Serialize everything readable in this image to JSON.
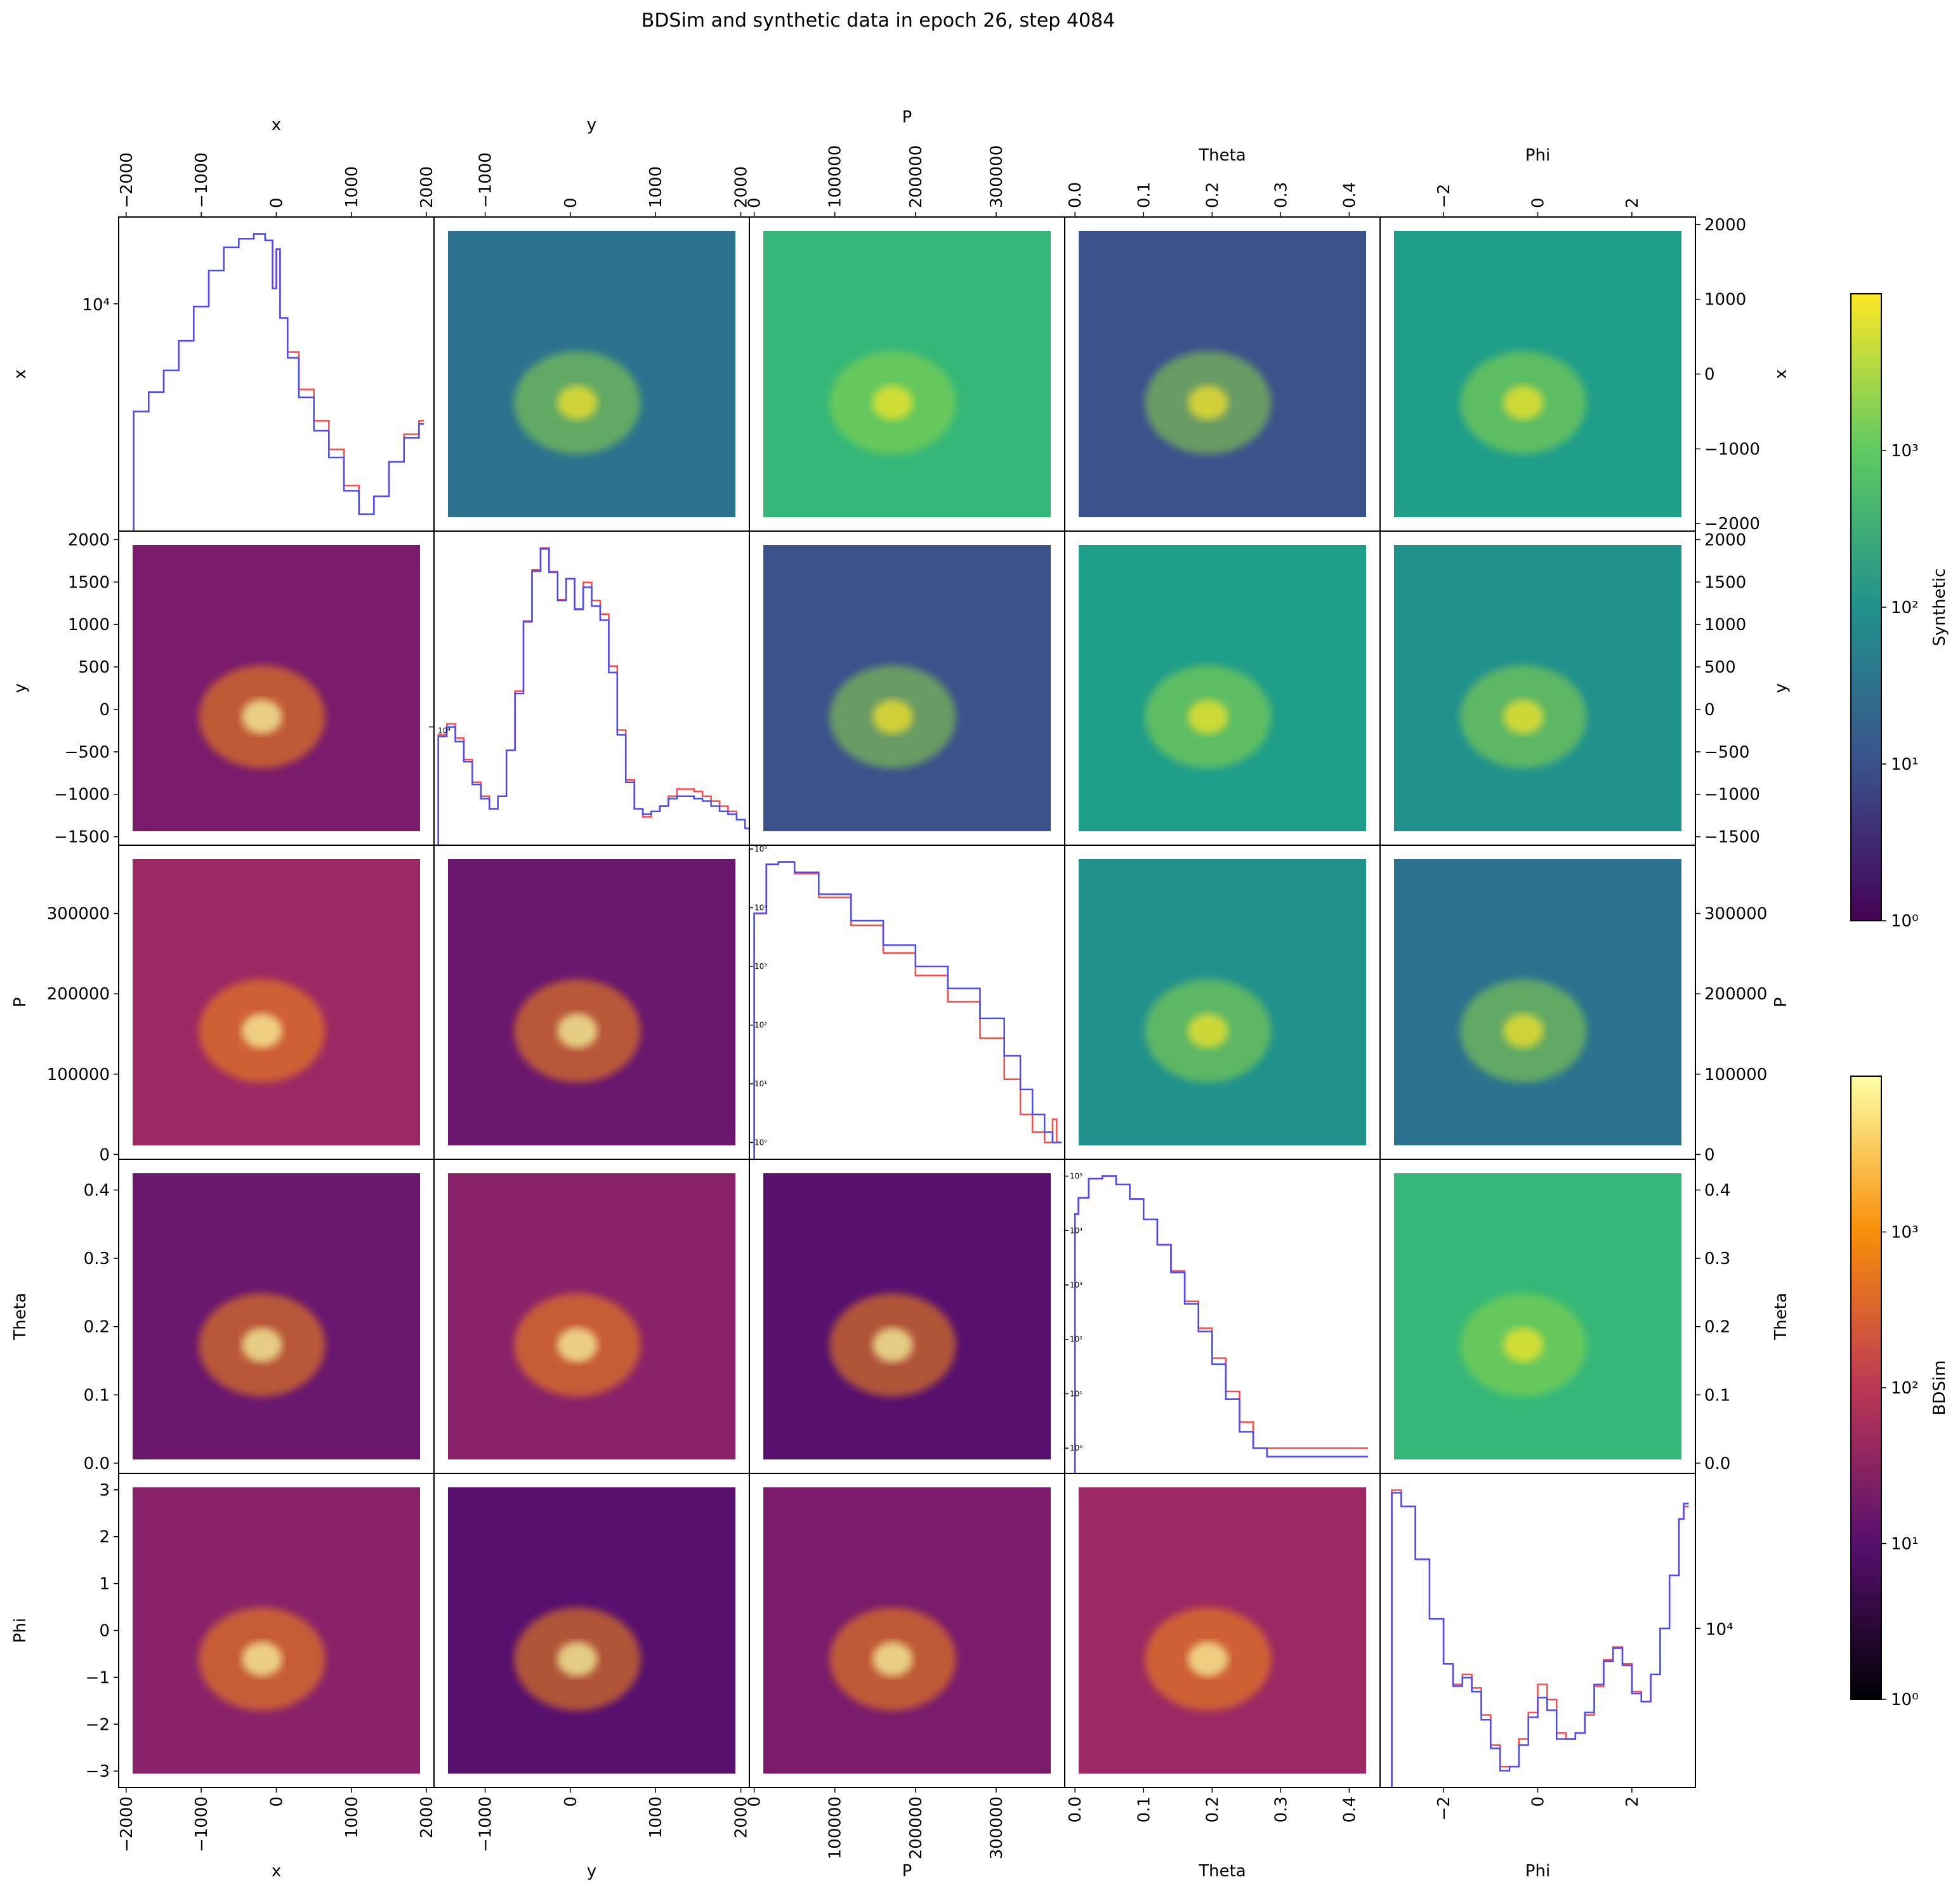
{
  "title": "BDSim and synthetic data in epoch 26, step 4084",
  "chart_data": {
    "type": "pairplot",
    "variables": [
      "x",
      "y",
      "P",
      "Theta",
      "Phi"
    ],
    "axis_labels": {
      "x_labels": [
        "x",
        "y",
        "P",
        "Theta",
        "Phi"
      ],
      "y_labels": [
        "x",
        "y",
        "P",
        "Theta",
        "Phi"
      ]
    },
    "ranges": {
      "x": [
        -2100,
        2100
      ],
      "y": [
        -1600,
        2100
      ],
      "P": [
        -6000,
        385000
      ],
      "Theta": [
        -0.015,
        0.445
      ],
      "Phi": [
        -3.35,
        3.35
      ]
    },
    "ticks": {
      "x": {
        "values": [
          -2000,
          -1000,
          0,
          1000,
          2000
        ],
        "labels": [
          "−2000",
          "−1000",
          "0",
          "1000",
          "2000"
        ]
      },
      "y_top": {
        "values": [
          -1000,
          0,
          1000,
          2000
        ],
        "labels": [
          "−1000",
          "0",
          "1000",
          "2000"
        ]
      },
      "y_side": {
        "values": [
          -1500,
          -1000,
          -500,
          0,
          500,
          1000,
          1500,
          2000
        ],
        "labels": [
          "−1500",
          "−1000",
          "−500",
          "0",
          "500",
          "1000",
          "1500",
          "2000"
        ]
      },
      "P": {
        "values": [
          0,
          100000,
          200000,
          300000
        ],
        "labels": [
          "0",
          "100000",
          "200000",
          "300000"
        ]
      },
      "P_side": {
        "values": [
          0,
          100000,
          200000,
          300000
        ],
        "labels": [
          "0",
          "100000",
          "200000",
          "300000"
        ]
      },
      "Theta": {
        "values": [
          0.0,
          0.1,
          0.2,
          0.3,
          0.4
        ],
        "labels": [
          "0.0",
          "0.1",
          "0.2",
          "0.3",
          "0.4"
        ]
      },
      "Phi_top": {
        "values": [
          -2,
          0,
          2
        ],
        "labels": [
          "−2",
          "0",
          "2"
        ]
      },
      "Phi_side": {
        "values": [
          -3,
          -2,
          -1,
          0,
          1,
          2,
          3
        ],
        "labels": [
          "−3",
          "−2",
          "−1",
          "0",
          "1",
          "2",
          "3"
        ]
      }
    },
    "upper_triangle": {
      "type": "heatmap",
      "dataset": "Synthetic",
      "colormap": "viridis",
      "scale": "log"
    },
    "lower_triangle": {
      "type": "heatmap",
      "dataset": "BDSim",
      "colormap": "inferno",
      "scale": "log"
    },
    "diagonal": {
      "type": "line",
      "histtype": "step",
      "colors": {
        "BDSim": "#ff4a4a",
        "Synthetic": "#4a4aff"
      },
      "panels": [
        {
          "variable": "x",
          "yscale": "log",
          "tick_label": "10⁴",
          "x": [
            -1900,
            -1700,
            -1500,
            -1300,
            -1100,
            -900,
            -700,
            -500,
            -300,
            -150,
            -50,
            0,
            50,
            150,
            300,
            500,
            700,
            900,
            1100,
            1300,
            1500,
            1700,
            1900
          ],
          "BDSim": [
            4500,
            5200,
            6100,
            7600,
            9800,
            12800,
            15200,
            16200,
            16800,
            16000,
            11200,
            15000,
            9000,
            7000,
            5300,
            4200,
            3400,
            2600,
            2100,
            2400,
            3100,
            3800,
            4200
          ],
          "Synthetic": [
            4500,
            5200,
            6100,
            7600,
            9800,
            12800,
            15200,
            16200,
            16800,
            16000,
            11200,
            15000,
            9000,
            6700,
            5000,
            3900,
            3200,
            2500,
            2100,
            2400,
            3100,
            3700,
            4100
          ]
        },
        {
          "variable": "y",
          "yscale": "log",
          "tick_label": "10⁴",
          "x": [
            -1550,
            -1450,
            -1350,
            -1250,
            -1150,
            -1050,
            -950,
            -850,
            -750,
            -650,
            -550,
            -450,
            -350,
            -250,
            -150,
            -50,
            50,
            150,
            250,
            350,
            450,
            550,
            650,
            750,
            850,
            950,
            1050,
            1150,
            1250,
            1350,
            1450,
            1550,
            1650,
            1750,
            1850,
            1950,
            2050
          ],
          "BDSim": [
            9500,
            10200,
            9300,
            8100,
            7000,
            6400,
            5900,
            6400,
            8600,
            12600,
            19800,
            27500,
            31700,
            27200,
            22700,
            26000,
            21300,
            25400,
            22600,
            20700,
            14800,
            9800,
            7100,
            5900,
            5600,
            5800,
            6000,
            6400,
            6700,
            6700,
            6600,
            6400,
            6200,
            6000,
            5800,
            5500,
            5200
          ],
          "Synthetic": [
            9400,
            10000,
            9100,
            8000,
            6900,
            6300,
            5900,
            6400,
            8600,
            12400,
            19700,
            27300,
            31500,
            27100,
            22600,
            26000,
            21400,
            24600,
            21800,
            19900,
            14200,
            9500,
            7000,
            5900,
            5700,
            5800,
            6000,
            6300,
            6400,
            6400,
            6300,
            6200,
            6000,
            5800,
            5700,
            5500,
            5200
          ]
        },
        {
          "variable": "P",
          "yscale": "log",
          "tick_labels": [
            "10⁰",
            "10¹",
            "10²",
            "10³",
            "10⁴",
            "10⁵"
          ],
          "x": [
            0,
            15000,
            30000,
            50000,
            80000,
            120000,
            160000,
            200000,
            240000,
            280000,
            310000,
            330000,
            345000,
            360000,
            370000,
            375000
          ],
          "BDSim": [
            8000,
            55000,
            60000,
            38000,
            15000,
            5000,
            1700,
            700,
            250,
            60,
            12,
            3,
            1.5,
            1,
            2.5,
            1
          ],
          "Synthetic": [
            8000,
            55000,
            60000,
            40000,
            17000,
            6000,
            2300,
            1000,
            420,
            130,
            30,
            8,
            3,
            1.5,
            1,
            1
          ]
        },
        {
          "variable": "Theta",
          "yscale": "log",
          "tick_labels": [
            "10⁰",
            "10¹",
            "10²",
            "10³",
            "10⁴",
            "10⁵"
          ],
          "x": [
            0.0,
            0.005,
            0.02,
            0.04,
            0.06,
            0.08,
            0.1,
            0.12,
            0.14,
            0.16,
            0.18,
            0.2,
            0.22,
            0.24,
            0.26,
            0.28,
            0.42
          ],
          "BDSim": [
            20000,
            40000,
            90000,
            100000,
            70000,
            38000,
            16000,
            5500,
            1800,
            500,
            160,
            45,
            11,
            3,
            1,
            1,
            1
          ],
          "Synthetic": [
            20000,
            40000,
            90000,
            100000,
            70000,
            38000,
            16000,
            5500,
            1700,
            450,
            140,
            35,
            8,
            2,
            1,
            0.7,
            0.7
          ]
        },
        {
          "variable": "Phi",
          "yscale": "log",
          "tick_label": "10⁴",
          "x": [
            -3.1,
            -2.9,
            -2.6,
            -2.3,
            -2.0,
            -1.8,
            -1.6,
            -1.4,
            -1.2,
            -1.0,
            -0.8,
            -0.6,
            -0.4,
            -0.2,
            0.0,
            0.2,
            0.4,
            0.6,
            0.8,
            1.0,
            1.2,
            1.4,
            1.6,
            1.8,
            2.0,
            2.2,
            2.4,
            2.6,
            2.8,
            3.0,
            3.1
          ],
          "BDSim": [
            40000,
            34000,
            20000,
            11000,
            7000,
            5700,
            6300,
            5500,
            4200,
            3100,
            2500,
            2500,
            3300,
            4300,
            5700,
            4900,
            3500,
            3300,
            3500,
            4200,
            5600,
            7300,
            8300,
            7000,
            5300,
            4800,
            6300,
            10000,
            17000,
            30000,
            34000
          ],
          "Synthetic": [
            39000,
            34000,
            20000,
            11000,
            7000,
            5600,
            6100,
            5300,
            4000,
            3000,
            2400,
            2500,
            3100,
            4100,
            5000,
            4400,
            3300,
            3300,
            3500,
            4300,
            5700,
            7200,
            8200,
            6900,
            5200,
            4800,
            6300,
            10000,
            17000,
            30000,
            35000
          ]
        }
      ]
    },
    "colorbars": [
      {
        "label": "Synthetic",
        "colormap": "viridis",
        "scale": "log",
        "tick_labels": [
          "10⁰",
          "10¹",
          "10²",
          "10³"
        ],
        "max": 10000
      },
      {
        "label": "BDSim",
        "colormap": "inferno",
        "scale": "log",
        "tick_labels": [
          "10⁰",
          "10¹",
          "10²",
          "10³"
        ],
        "max": 10000
      }
    ]
  }
}
